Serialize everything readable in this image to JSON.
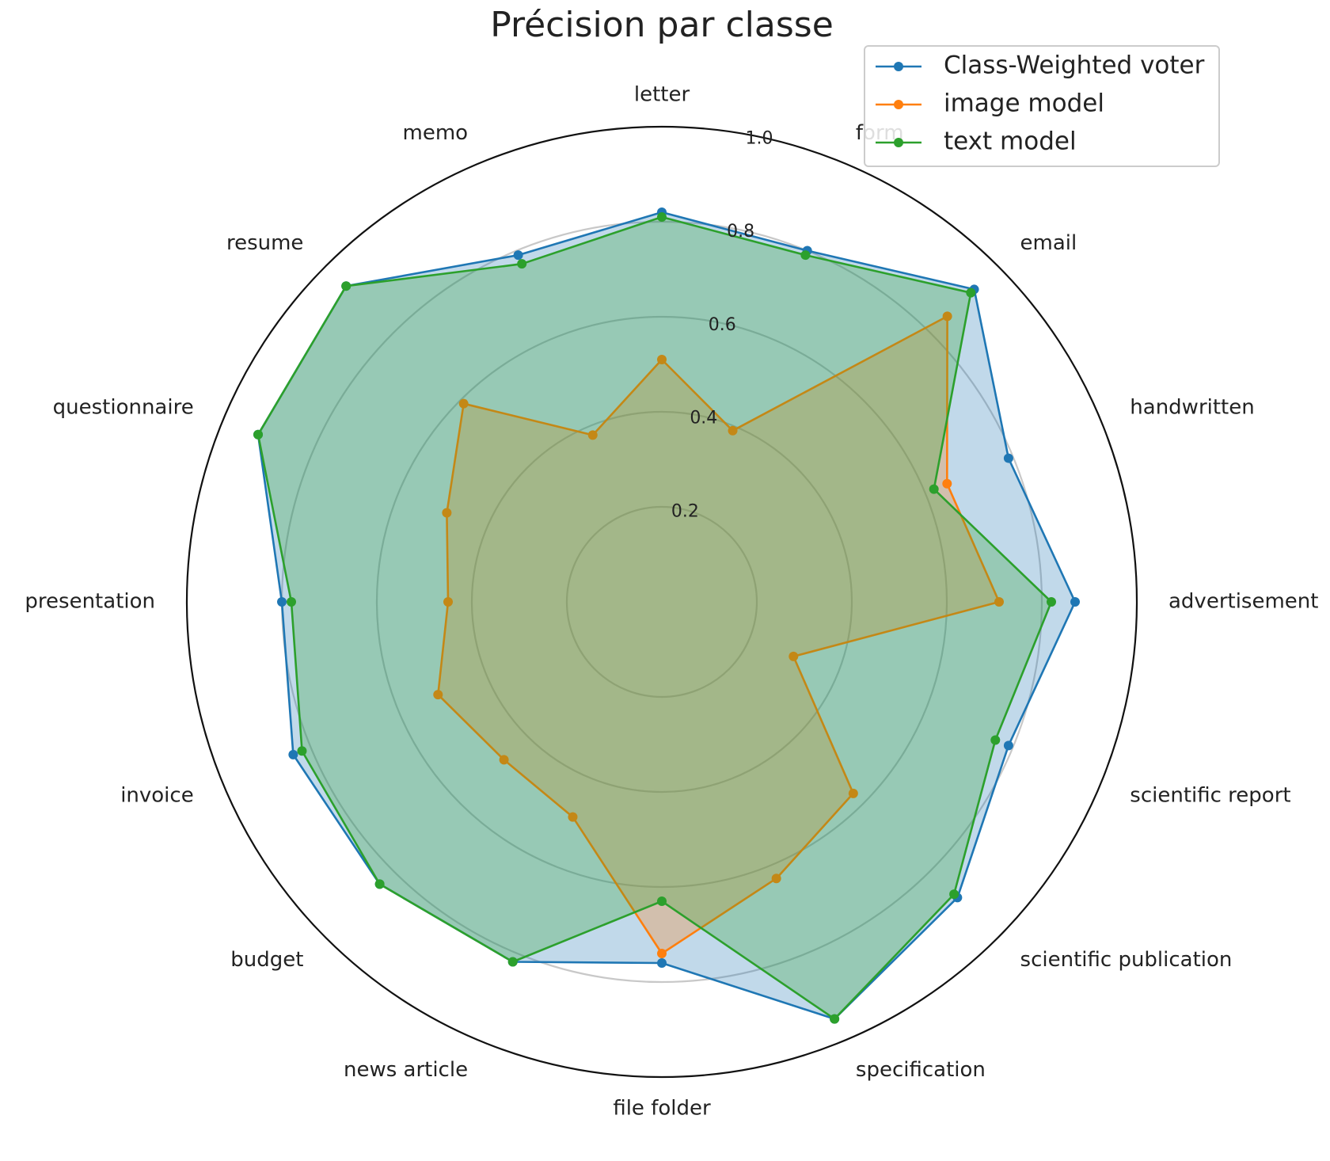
{
  "chart_data": {
    "type": "radar",
    "title": "Précision par classe",
    "categories": [
      "letter",
      "form",
      "email",
      "handwritten",
      "advertisement",
      "scientific report",
      "scientific publication",
      "specification",
      "file folder",
      "news article",
      "budget",
      "invoice",
      "presentation",
      "questionnaire",
      "resume",
      "memo"
    ],
    "r_ticks": [
      0.2,
      0.4,
      0.6,
      0.8,
      1.0
    ],
    "r_tick_labels": [
      "0.2",
      "0.4",
      "0.6",
      "0.8",
      "1.0"
    ],
    "rlim": [
      0,
      1.0
    ],
    "grid": true,
    "legend_position": "top-right",
    "series": [
      {
        "name": "Class-Weighted voter",
        "color": "#1f77b4",
        "values": [
          0.82,
          0.8,
          0.93,
          0.79,
          0.87,
          0.79,
          0.88,
          0.95,
          0.76,
          0.82,
          0.84,
          0.84,
          0.8,
          0.92,
          0.94,
          0.79
        ]
      },
      {
        "name": "image model",
        "color": "#ff7f0e",
        "values": [
          0.51,
          0.39,
          0.85,
          0.65,
          0.71,
          0.3,
          0.57,
          0.63,
          0.74,
          0.49,
          0.47,
          0.51,
          0.45,
          0.49,
          0.59,
          0.38
        ]
      },
      {
        "name": "text model",
        "color": "#2ca02c",
        "values": [
          0.81,
          0.79,
          0.92,
          0.62,
          0.82,
          0.76,
          0.87,
          0.95,
          0.63,
          0.82,
          0.84,
          0.82,
          0.78,
          0.92,
          0.94,
          0.77
        ]
      }
    ]
  }
}
